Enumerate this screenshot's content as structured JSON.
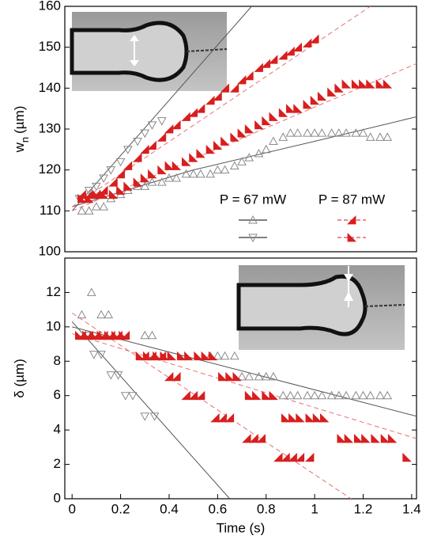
{
  "chart_data": [
    {
      "type": "scatter",
      "ylabel": "w",
      "ylabel_sub": "n",
      "ylabel_unit": "(µm)",
      "xlim": [
        -0.03,
        1.42
      ],
      "ylim": [
        100,
        160
      ],
      "yticks": [
        100,
        110,
        120,
        130,
        140,
        150,
        160
      ],
      "legend": {
        "groups": [
          {
            "label": "P = 67 mW",
            "color": "#000000"
          },
          {
            "label": "P = 87 mW",
            "color": "#e8383a"
          }
        ]
      },
      "series": [
        {
          "marker": "open-up",
          "color": "#8a8a8a",
          "x": [
            0.04,
            0.07,
            0.1,
            0.13,
            0.16,
            0.2,
            0.23,
            0.27,
            0.3,
            0.33,
            0.37,
            0.4,
            0.43,
            0.47,
            0.5,
            0.53,
            0.57,
            0.6,
            0.63,
            0.67,
            0.7,
            0.73,
            0.77,
            0.8,
            0.83,
            0.87,
            0.9,
            0.93,
            0.97,
            1.0,
            1.03,
            1.07,
            1.1,
            1.13,
            1.17,
            1.2,
            1.23,
            1.27,
            1.3
          ],
          "values": [
            110,
            110,
            111,
            111,
            113,
            114,
            115,
            116,
            116,
            117,
            117,
            118,
            118,
            119,
            119,
            119,
            119,
            120,
            120,
            121,
            122,
            123,
            124,
            125,
            127,
            128,
            129,
            129,
            129,
            129,
            129,
            129,
            129,
            129,
            129,
            129,
            128,
            128,
            128
          ]
        },
        {
          "marker": "open-down",
          "color": "#8a8a8a",
          "x": [
            0.03,
            0.07,
            0.1,
            0.13,
            0.16,
            0.2,
            0.23,
            0.27,
            0.3,
            0.33,
            0.37
          ],
          "values": [
            113,
            115,
            116,
            118,
            120,
            122,
            125,
            127,
            129,
            131,
            132
          ]
        },
        {
          "marker": "half-right",
          "color": "#d81e1e",
          "x": [
            0.04,
            0.07,
            0.1,
            0.13,
            0.17,
            0.2,
            0.23,
            0.27,
            0.3,
            0.33,
            0.37,
            0.4,
            0.43,
            0.47,
            0.5,
            0.53,
            0.57,
            0.6,
            0.63,
            0.67,
            0.7,
            0.73,
            0.77,
            0.8,
            0.83,
            0.87,
            0.9,
            0.93,
            0.97,
            1.0
          ],
          "values": [
            114,
            114,
            114,
            115,
            117,
            119,
            121,
            123,
            125,
            126,
            128,
            130,
            131,
            133,
            134,
            135,
            137,
            138,
            140,
            140,
            142,
            143,
            145,
            146,
            147,
            148,
            149,
            150,
            151,
            152
          ]
        },
        {
          "marker": "half-left",
          "color": "#d81e1e",
          "x": [
            0.04,
            0.07,
            0.1,
            0.13,
            0.17,
            0.2,
            0.23,
            0.27,
            0.3,
            0.33,
            0.37,
            0.4,
            0.43,
            0.47,
            0.5,
            0.53,
            0.57,
            0.6,
            0.63,
            0.67,
            0.7,
            0.73,
            0.77,
            0.8,
            0.83,
            0.87,
            0.9,
            0.93,
            0.97,
            1.0,
            1.03,
            1.07,
            1.1,
            1.13,
            1.17,
            1.2,
            1.23,
            1.27,
            1.3
          ],
          "values": [
            113,
            113,
            114,
            114,
            114,
            115,
            116,
            117,
            118,
            119,
            120,
            121,
            121,
            122,
            123,
            124,
            125,
            126,
            127,
            128,
            129,
            130,
            131,
            132,
            133,
            134,
            135,
            135,
            136,
            137,
            138,
            139,
            140,
            141,
            141,
            141,
            141,
            141,
            141
          ]
        }
      ],
      "fits": [
        {
          "color": "#555555",
          "dashed": false,
          "x": [
            0,
            0.74
          ],
          "values": [
            110,
            160
          ]
        },
        {
          "color": "#555555",
          "dashed": false,
          "x": [
            0,
            0.5,
            1,
            1.42
          ],
          "values": [
            111,
            120,
            127,
            133
          ]
        },
        {
          "color": "#e87070",
          "dashed": true,
          "x": [
            0,
            1.23
          ],
          "values": [
            111,
            160
          ]
        },
        {
          "color": "#e87070",
          "dashed": true,
          "x": [
            0,
            1.42
          ],
          "values": [
            110,
            146
          ]
        }
      ]
    },
    {
      "type": "scatter",
      "ylabel": "δ (µm)",
      "xlabel": "Time (s)",
      "xlim": [
        -0.03,
        1.42
      ],
      "ylim": [
        0,
        14
      ],
      "yticks": [
        0,
        2,
        4,
        6,
        8,
        10,
        12
      ],
      "xticks": [
        0,
        0.2,
        0.4,
        0.6,
        0.8,
        1,
        1.2,
        1.4
      ],
      "series": [
        {
          "marker": "open-up",
          "color": "#8a8a8a",
          "x": [
            0.04,
            0.08,
            0.12,
            0.15,
            0.3,
            0.33,
            0.57,
            0.6,
            0.63,
            0.67,
            0.7,
            0.73,
            0.77,
            0.8,
            0.83,
            0.87,
            0.9,
            0.93,
            0.97,
            1.0,
            1.03,
            1.07,
            1.1,
            1.13,
            1.17,
            1.2,
            1.23,
            1.27,
            1.3
          ],
          "values": [
            10.7,
            12,
            10.7,
            10.7,
            9.5,
            9.5,
            8.3,
            8.3,
            8.3,
            8.3,
            7.1,
            7.1,
            7.1,
            7.1,
            7.1,
            6,
            6,
            6,
            6,
            6,
            6,
            6,
            6,
            6,
            6,
            6,
            6,
            6,
            6
          ]
        },
        {
          "marker": "open-down",
          "color": "#8a8a8a",
          "x": [
            0.06,
            0.09,
            0.12,
            0.16,
            0.19,
            0.22,
            0.25,
            0.3,
            0.34
          ],
          "values": [
            9.5,
            8.4,
            8.4,
            7.2,
            7.2,
            6,
            6,
            4.8,
            4.8
          ]
        },
        {
          "marker": "half-right",
          "color": "#d81e1e",
          "x": [
            0.04,
            0.07,
            0.1,
            0.13,
            0.16,
            0.19,
            0.22,
            0.3,
            0.33,
            0.37,
            0.4,
            0.43,
            0.47,
            0.5,
            0.53,
            0.59,
            0.62,
            0.65,
            0.72,
            0.75,
            0.78,
            0.85,
            0.88,
            0.91,
            0.94,
            0.98
          ],
          "values": [
            9.5,
            9.5,
            9.5,
            9.5,
            9.5,
            9.5,
            9.5,
            8.3,
            8.3,
            8.3,
            7.1,
            7.1,
            6,
            6,
            6,
            4.7,
            4.7,
            4.7,
            3.5,
            3.5,
            3.5,
            2.4,
            2.4,
            2.4,
            2.4,
            2.4
          ]
        },
        {
          "marker": "half-left",
          "color": "#d81e1e",
          "x": [
            0.03,
            0.06,
            0.09,
            0.12,
            0.15,
            0.18,
            0.21,
            0.28,
            0.31,
            0.35,
            0.38,
            0.41,
            0.45,
            0.48,
            0.52,
            0.55,
            0.58,
            0.62,
            0.65,
            0.68,
            0.73,
            0.76,
            0.8,
            0.83,
            0.88,
            0.91,
            0.94,
            0.98,
            1.01,
            1.04,
            1.11,
            1.14,
            1.18,
            1.21,
            1.25,
            1.29,
            1.32,
            1.38
          ],
          "values": [
            9.5,
            9.5,
            9.5,
            9.5,
            9.5,
            9.5,
            9.5,
            8.3,
            8.3,
            8.3,
            8.3,
            8.3,
            8.3,
            8.3,
            8.3,
            8.3,
            8.3,
            7.1,
            7.1,
            7.1,
            6,
            6,
            6,
            6,
            4.7,
            4.7,
            4.7,
            4.7,
            4.7,
            4.7,
            3.5,
            3.5,
            3.5,
            3.5,
            3.5,
            3.5,
            3.5,
            2.4
          ]
        }
      ],
      "fits": [
        {
          "color": "#555555",
          "dashed": false,
          "x": [
            0,
            1.42
          ],
          "values": [
            10,
            4.8
          ]
        },
        {
          "color": "#555555",
          "dashed": false,
          "x": [
            0,
            0.65
          ],
          "values": [
            10.3,
            0
          ]
        },
        {
          "color": "#e87070",
          "dashed": true,
          "x": [
            0,
            1.15
          ],
          "values": [
            10.8,
            0
          ]
        },
        {
          "color": "#e87070",
          "dashed": true,
          "x": [
            0,
            1.42
          ],
          "values": [
            9.6,
            3.5
          ]
        }
      ]
    }
  ]
}
